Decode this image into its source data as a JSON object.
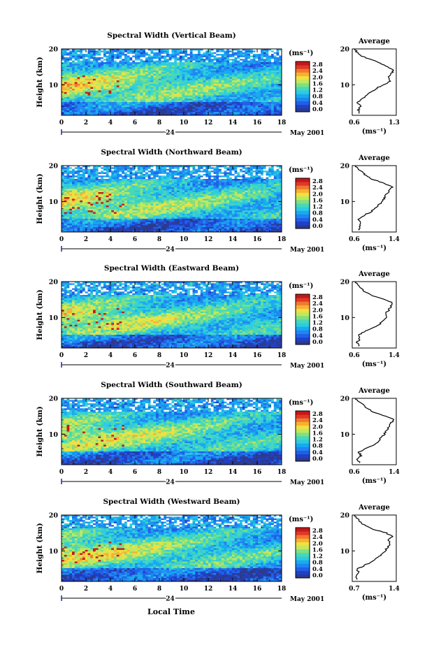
{
  "figure": {
    "shared_xlabel": "Local Time",
    "avg_title": "Average",
    "cbar_unit": "(ms⁻¹)",
    "avg_unit": "(ms⁻¹)",
    "date_marker": "24",
    "month_label": "May 2001",
    "ylabel": "Height (km)"
  },
  "chart_data": [
    {
      "type": "heatmap",
      "title": "Spectral Width (Vertical Beam)",
      "xlabel": "Local Time",
      "ylabel": "Height (km)",
      "x_ticks": [
        "0",
        "2",
        "4",
        "6",
        "8",
        "10",
        "12",
        "14",
        "16",
        "18"
      ],
      "xlim": [
        0,
        18
      ],
      "y_ticks": [
        "20",
        "10"
      ],
      "ylim": [
        1.5,
        20
      ],
      "colorbar": {
        "unit": "(ms⁻¹)",
        "ticks": [
          "2.8",
          "2.4",
          "2.0",
          "1.6",
          "1.2",
          "0.8",
          "0.4",
          "0.0"
        ],
        "range": [
          0,
          2.8
        ]
      },
      "average": {
        "title": "Average",
        "xlabel": "(ms⁻¹)",
        "x_ticks": [
          "0.6",
          "1.3"
        ],
        "xlim": [
          0.6,
          1.3
        ],
        "y_ticks": [
          "20",
          "10"
        ],
        "profile": [
          [
            2,
            0.72
          ],
          [
            3,
            0.7
          ],
          [
            4,
            0.74
          ],
          [
            5,
            0.68
          ],
          [
            6,
            0.76
          ],
          [
            7,
            0.82
          ],
          [
            8,
            0.9
          ],
          [
            9,
            0.98
          ],
          [
            10,
            1.1
          ],
          [
            11,
            1.2
          ],
          [
            12,
            1.18
          ],
          [
            13,
            1.22
          ],
          [
            14,
            1.25
          ],
          [
            15,
            1.16
          ],
          [
            16,
            1.05
          ],
          [
            17,
            0.9
          ],
          [
            18,
            0.75
          ],
          [
            19,
            0.68
          ],
          [
            20,
            0.64
          ]
        ]
      }
    },
    {
      "type": "heatmap",
      "title": "Spectral Width (Northward Beam)",
      "xlabel": "Local Time",
      "ylabel": "Height (km)",
      "x_ticks": [
        "0",
        "2",
        "4",
        "6",
        "8",
        "10",
        "12",
        "14",
        "16",
        "18"
      ],
      "xlim": [
        0,
        18
      ],
      "y_ticks": [
        "20",
        "10"
      ],
      "ylim": [
        1.5,
        20
      ],
      "colorbar": {
        "unit": "(ms⁻¹)",
        "ticks": [
          "2.8",
          "2.4",
          "2.0",
          "1.6",
          "1.2",
          "0.8",
          "0.4",
          "0.0"
        ],
        "range": [
          0,
          2.8
        ]
      },
      "average": {
        "title": "Average",
        "xlabel": "(ms⁻¹)",
        "x_ticks": [
          "0.6",
          "1.4"
        ],
        "xlim": [
          0.6,
          1.4
        ],
        "y_ticks": [
          "20",
          "10"
        ],
        "profile": [
          [
            2,
            0.74
          ],
          [
            3,
            0.72
          ],
          [
            4,
            0.76
          ],
          [
            5,
            0.7
          ],
          [
            6,
            0.8
          ],
          [
            7,
            0.92
          ],
          [
            8,
            1.02
          ],
          [
            9,
            1.08
          ],
          [
            10,
            1.15
          ],
          [
            11,
            1.18
          ],
          [
            12,
            1.22
          ],
          [
            13,
            1.28
          ],
          [
            14,
            1.32
          ],
          [
            15,
            1.2
          ],
          [
            16,
            1.0
          ],
          [
            17,
            0.86
          ],
          [
            18,
            0.8
          ],
          [
            19,
            0.7
          ],
          [
            20,
            0.66
          ]
        ]
      }
    },
    {
      "type": "heatmap",
      "title": "Spectral Width (Eastward Beam)",
      "xlabel": "Local Time",
      "ylabel": "Height (km)",
      "x_ticks": [
        "0",
        "2",
        "4",
        "6",
        "8",
        "10",
        "12",
        "14",
        "16",
        "18"
      ],
      "xlim": [
        0,
        18
      ],
      "y_ticks": [
        "20",
        "10"
      ],
      "ylim": [
        1.5,
        20
      ],
      "colorbar": {
        "unit": "(ms⁻¹)",
        "ticks": [
          "2.8",
          "2.4",
          "2.0",
          "1.6",
          "1.2",
          "0.8",
          "0.4",
          "0.0"
        ],
        "range": [
          0,
          2.8
        ]
      },
      "average": {
        "title": "Average",
        "xlabel": "(ms⁻¹)",
        "x_ticks": [
          "0.6",
          "1.4"
        ],
        "xlim": [
          0.6,
          1.4
        ],
        "y_ticks": [
          "20",
          "10"
        ],
        "profile": [
          [
            2,
            0.72
          ],
          [
            3,
            0.68
          ],
          [
            4,
            0.74
          ],
          [
            5,
            0.7
          ],
          [
            6,
            0.82
          ],
          [
            7,
            0.96
          ],
          [
            8,
            1.08
          ],
          [
            9,
            1.16
          ],
          [
            10,
            1.24
          ],
          [
            11,
            1.2
          ],
          [
            12,
            1.26
          ],
          [
            13,
            1.3
          ],
          [
            14,
            1.34
          ],
          [
            15,
            1.18
          ],
          [
            16,
            0.98
          ],
          [
            17,
            0.84
          ],
          [
            18,
            0.78
          ],
          [
            19,
            0.7
          ],
          [
            20,
            0.66
          ]
        ]
      }
    },
    {
      "type": "heatmap",
      "title": "Spectral Width (Southward Beam)",
      "xlabel": "Local Time",
      "ylabel": "Height (km)",
      "x_ticks": [
        "0",
        "2",
        "4",
        "6",
        "8",
        "10",
        "12",
        "14",
        "16",
        "18"
      ],
      "xlim": [
        0,
        18
      ],
      "y_ticks": [
        "20",
        "10"
      ],
      "ylim": [
        1.5,
        20
      ],
      "colorbar": {
        "unit": "(ms⁻¹)",
        "ticks": [
          "2.8",
          "2.4",
          "2.0",
          "1.6",
          "1.2",
          "0.8",
          "0.4",
          "0.0"
        ],
        "range": [
          0,
          2.8
        ]
      },
      "average": {
        "title": "Average",
        "xlabel": "(ms⁻¹)",
        "x_ticks": [
          "0.6",
          "1.4"
        ],
        "xlim": [
          0.6,
          1.4
        ],
        "y_ticks": [
          "20",
          "10"
        ],
        "profile": [
          [
            2,
            0.74
          ],
          [
            3,
            0.7
          ],
          [
            4,
            0.76
          ],
          [
            5,
            0.72
          ],
          [
            6,
            0.84
          ],
          [
            7,
            0.98
          ],
          [
            8,
            1.08
          ],
          [
            9,
            1.12
          ],
          [
            10,
            1.18
          ],
          [
            11,
            1.22
          ],
          [
            12,
            1.26
          ],
          [
            13,
            1.3
          ],
          [
            14,
            1.36
          ],
          [
            15,
            1.22
          ],
          [
            16,
            1.02
          ],
          [
            17,
            0.88
          ],
          [
            18,
            0.82
          ],
          [
            19,
            0.72
          ],
          [
            20,
            0.66
          ]
        ]
      }
    },
    {
      "type": "heatmap",
      "title": "Spectral Width (Westward Beam)",
      "xlabel": "Local Time",
      "ylabel": "Height (km)",
      "x_ticks": [
        "0",
        "2",
        "4",
        "6",
        "8",
        "10",
        "12",
        "14",
        "16",
        "18"
      ],
      "xlim": [
        0,
        18
      ],
      "y_ticks": [
        "20",
        "10"
      ],
      "ylim": [
        1.5,
        20
      ],
      "colorbar": {
        "unit": "(ms⁻¹)",
        "ticks": [
          "2.8",
          "2.4",
          "2.0",
          "1.6",
          "1.2",
          "0.8",
          "0.4",
          "0.0"
        ],
        "range": [
          0,
          2.8
        ]
      },
      "average": {
        "title": "Average",
        "xlabel": "(ms⁻¹)",
        "x_ticks": [
          "0.7",
          "1.4"
        ],
        "xlim": [
          0.7,
          1.4
        ],
        "y_ticks": [
          "20",
          "10"
        ],
        "profile": [
          [
            2,
            0.78
          ],
          [
            3,
            0.76
          ],
          [
            4,
            0.8
          ],
          [
            5,
            0.78
          ],
          [
            6,
            0.9
          ],
          [
            7,
            1.02
          ],
          [
            8,
            1.1
          ],
          [
            9,
            1.16
          ],
          [
            10,
            1.22
          ],
          [
            11,
            1.26
          ],
          [
            12,
            1.3
          ],
          [
            13,
            1.28
          ],
          [
            14,
            1.34
          ],
          [
            15,
            1.24
          ],
          [
            16,
            1.04
          ],
          [
            17,
            0.9
          ],
          [
            18,
            0.84
          ],
          [
            19,
            0.78
          ],
          [
            20,
            0.74
          ]
        ]
      }
    }
  ]
}
